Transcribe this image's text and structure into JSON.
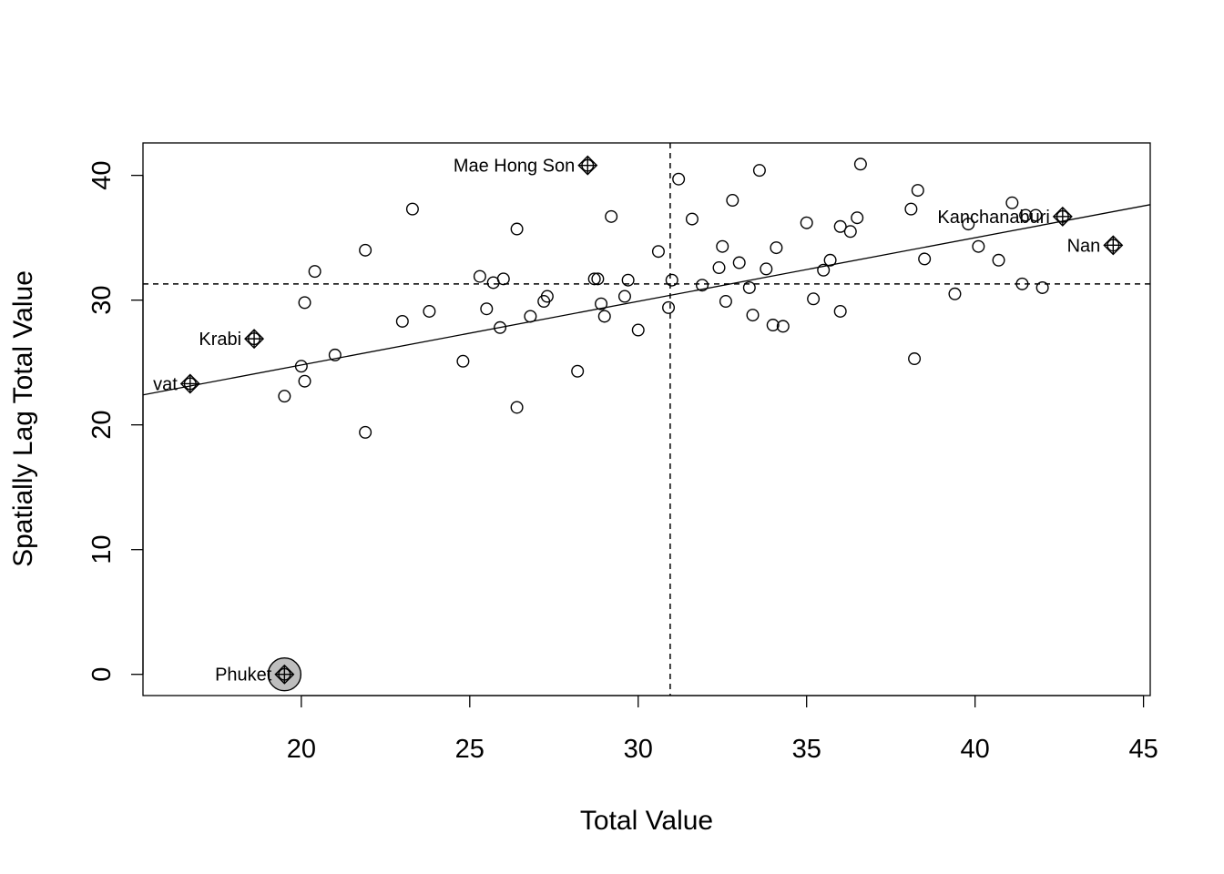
{
  "chart_data": {
    "type": "scatter",
    "title": "",
    "xlabel": "Total Value",
    "ylabel": "Spatially Lag Total Value",
    "xlim": [
      15.3,
      45.2
    ],
    "ylim": [
      -1.7,
      42.6
    ],
    "xticks": [
      20,
      25,
      30,
      35,
      40,
      45
    ],
    "yticks": [
      0,
      10,
      20,
      30,
      40
    ],
    "x_mean": 30.95,
    "y_mean": 31.3,
    "regression": {
      "intercept": 14.6,
      "slope": 0.51
    },
    "grid": false,
    "points": [
      [
        19.5,
        22.3
      ],
      [
        20.0,
        24.7
      ],
      [
        20.1,
        23.5
      ],
      [
        20.1,
        29.8
      ],
      [
        20.4,
        32.3
      ],
      [
        21.0,
        25.6
      ],
      [
        21.9,
        19.4
      ],
      [
        21.9,
        34.0
      ],
      [
        23.0,
        28.3
      ],
      [
        23.3,
        37.3
      ],
      [
        23.8,
        29.1
      ],
      [
        24.8,
        25.1
      ],
      [
        25.3,
        31.9
      ],
      [
        25.5,
        29.3
      ],
      [
        25.7,
        31.4
      ],
      [
        25.9,
        27.8
      ],
      [
        26.0,
        31.7
      ],
      [
        26.4,
        35.7
      ],
      [
        26.4,
        21.4
      ],
      [
        26.8,
        28.7
      ],
      [
        27.2,
        29.9
      ],
      [
        27.3,
        30.3
      ],
      [
        28.2,
        24.3
      ],
      [
        28.7,
        31.7
      ],
      [
        28.8,
        31.7
      ],
      [
        28.9,
        29.7
      ],
      [
        29.0,
        28.7
      ],
      [
        29.2,
        36.7
      ],
      [
        29.6,
        30.3
      ],
      [
        29.7,
        31.6
      ],
      [
        30.0,
        27.6
      ],
      [
        30.6,
        33.9
      ],
      [
        30.9,
        29.4
      ],
      [
        31.0,
        31.6
      ],
      [
        31.2,
        39.7
      ],
      [
        31.6,
        36.5
      ],
      [
        31.9,
        31.2
      ],
      [
        32.4,
        32.6
      ],
      [
        32.5,
        34.3
      ],
      [
        32.6,
        29.9
      ],
      [
        32.8,
        38.0
      ],
      [
        33.0,
        33.0
      ],
      [
        33.3,
        31.0
      ],
      [
        33.4,
        28.8
      ],
      [
        33.6,
        40.4
      ],
      [
        33.8,
        32.5
      ],
      [
        34.0,
        28.0
      ],
      [
        34.1,
        34.2
      ],
      [
        34.3,
        27.9
      ],
      [
        35.0,
        36.2
      ],
      [
        35.2,
        30.1
      ],
      [
        35.5,
        32.4
      ],
      [
        35.7,
        33.2
      ],
      [
        36.0,
        29.1
      ],
      [
        36.0,
        35.9
      ],
      [
        36.3,
        35.5
      ],
      [
        36.5,
        36.6
      ],
      [
        36.6,
        40.9
      ],
      [
        38.1,
        37.3
      ],
      [
        38.2,
        25.3
      ],
      [
        38.3,
        38.8
      ],
      [
        38.5,
        33.3
      ],
      [
        39.4,
        30.5
      ],
      [
        39.8,
        36.1
      ],
      [
        40.1,
        34.3
      ],
      [
        40.7,
        33.2
      ],
      [
        41.1,
        37.8
      ],
      [
        41.4,
        31.3
      ],
      [
        41.5,
        36.8
      ],
      [
        41.8,
        36.8
      ],
      [
        42.0,
        31.0
      ]
    ],
    "influential_points": [
      {
        "label": "Mae Hong Son",
        "x": 28.5,
        "y": 40.8,
        "highlight": false
      },
      {
        "label": "Krabi",
        "x": 18.6,
        "y": 26.9,
        "highlight": false
      },
      {
        "label": "vat",
        "x": 16.7,
        "y": 23.3,
        "highlight": false
      },
      {
        "label": "Kanchanaburi",
        "x": 42.6,
        "y": 36.7,
        "highlight": false
      },
      {
        "label": "Nan",
        "x": 44.1,
        "y": 34.4,
        "highlight": true
      },
      {
        "label": "Phuket",
        "x": 19.5,
        "y": 0.0,
        "highlight": true
      }
    ],
    "colors": {
      "marker": "#000000",
      "highlight_fill": "#bebebe",
      "background": "#ffffff"
    }
  }
}
